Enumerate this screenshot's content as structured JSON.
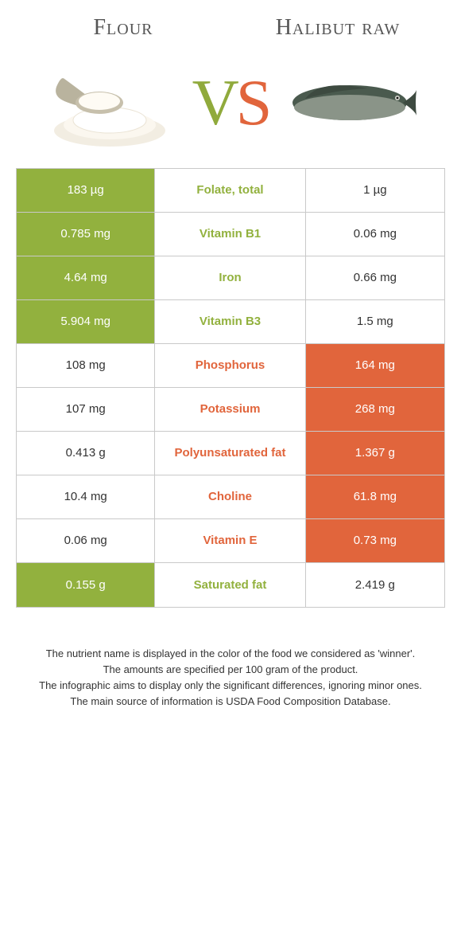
{
  "food_a": {
    "name": "Flour",
    "color": "#92b13e"
  },
  "food_b": {
    "name": "Halibut raw",
    "color": "#e1653c"
  },
  "vs_v_color": "#90aa3c",
  "vs_s_color": "#e1653c",
  "rows": [
    {
      "label": "Folate, total",
      "a": "183 µg",
      "b": "1 µg",
      "winner": "a"
    },
    {
      "label": "Vitamin B1",
      "a": "0.785 mg",
      "b": "0.06 mg",
      "winner": "a"
    },
    {
      "label": "Iron",
      "a": "4.64 mg",
      "b": "0.66 mg",
      "winner": "a"
    },
    {
      "label": "Vitamin B3",
      "a": "5.904 mg",
      "b": "1.5 mg",
      "winner": "a"
    },
    {
      "label": "Phosphorus",
      "a": "108 mg",
      "b": "164 mg",
      "winner": "b"
    },
    {
      "label": "Potassium",
      "a": "107 mg",
      "b": "268 mg",
      "winner": "b"
    },
    {
      "label": "Polyunsaturated fat",
      "a": "0.413 g",
      "b": "1.367 g",
      "winner": "b"
    },
    {
      "label": "Choline",
      "a": "10.4 mg",
      "b": "61.8 mg",
      "winner": "b"
    },
    {
      "label": "Vitamin E",
      "a": "0.06 mg",
      "b": "0.73 mg",
      "winner": "b"
    },
    {
      "label": "Saturated fat",
      "a": "0.155 g",
      "b": "2.419 g",
      "winner": "a"
    }
  ],
  "footnotes": [
    "The nutrient name is displayed in the color of the food we considered as 'winner'.",
    "The amounts are specified per 100 gram of the product.",
    "The infographic aims to display only the significant differences, ignoring minor ones.",
    "The main source of information is USDA Food Composition Database."
  ]
}
